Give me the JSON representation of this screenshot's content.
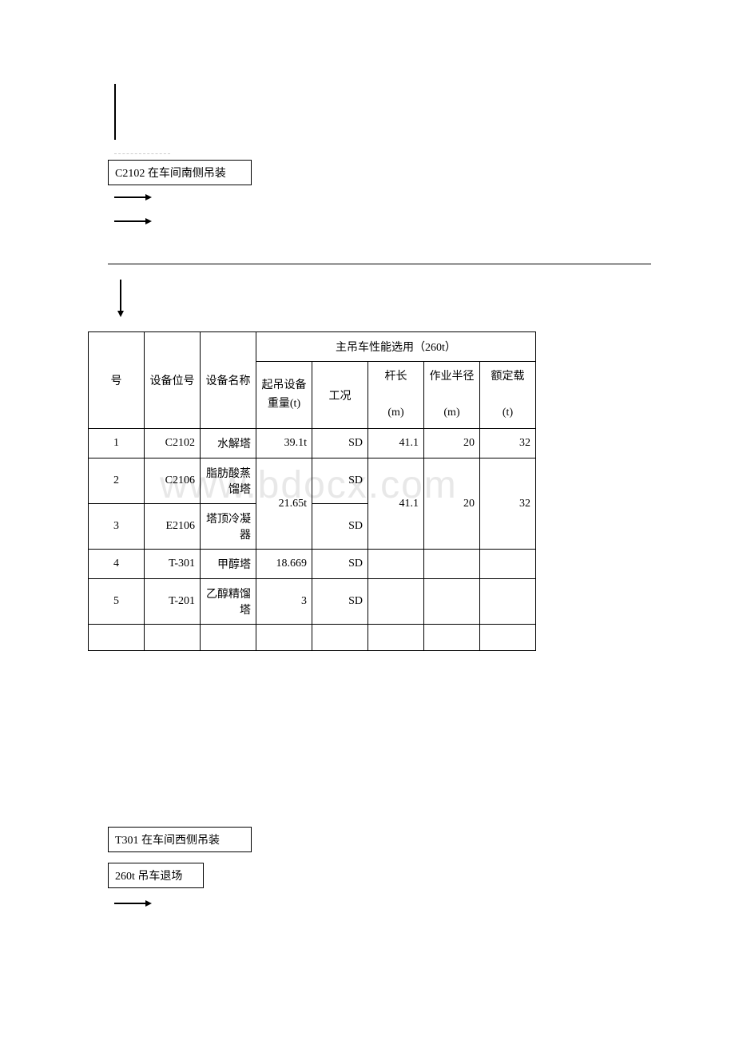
{
  "boxes": {
    "box1": "C2102 在车间南侧吊装",
    "box2": "T301 在车间西侧吊装",
    "box3": "260t 吊车退场"
  },
  "watermark": "www.bdocx.com",
  "table": {
    "header_main": "主吊车性能选用（260t）",
    "headers": {
      "num": "号",
      "pos": "设备位号",
      "name": "设备名称",
      "weight": "起吊设备重量(t)",
      "cond": "工况",
      "rod": "杆长",
      "rod_unit": "(m)",
      "radius": "作业半径",
      "radius_unit": "(m)",
      "load": "额定载",
      "load_unit": "(t)"
    },
    "rows": [
      {
        "num": "1",
        "pos": "C2102",
        "name": "水解塔",
        "weight": "39.1t",
        "cond": "SD",
        "rod": "41.1",
        "radius": "20",
        "load": "32"
      },
      {
        "num": "2",
        "pos": "C2106",
        "name": "脂肪酸蒸馏塔",
        "weight": "21.65t",
        "cond": "SD",
        "rod": "41.1",
        "radius": "20",
        "load": "32"
      },
      {
        "num": "3",
        "pos": "E2106",
        "name": "塔顶冷凝器",
        "weight": "",
        "cond": "SD",
        "rod": "",
        "radius": "",
        "load": ""
      },
      {
        "num": "4",
        "pos": "T-301",
        "name": "甲醇塔",
        "weight": "18.669",
        "cond": "SD",
        "rod": "",
        "radius": "",
        "load": ""
      },
      {
        "num": "5",
        "pos": "T-201",
        "name": "乙醇精馏塔",
        "weight": "3",
        "cond": "SD",
        "rod": "",
        "radius": "",
        "load": ""
      }
    ]
  },
  "colors": {
    "background": "#ffffff",
    "text": "#000000",
    "border": "#000000",
    "watermark": "#e8e8e8",
    "dashed": "#cccccc"
  }
}
